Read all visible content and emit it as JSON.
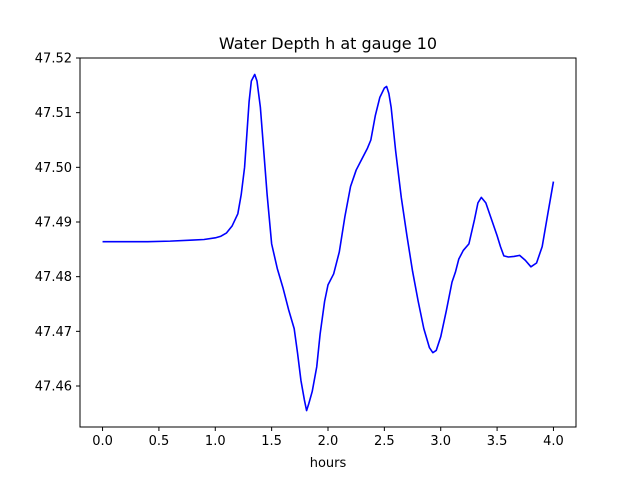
{
  "chart_data": {
    "type": "line",
    "title": "Water Depth h at gauge 10",
    "xlabel": "hours",
    "ylabel": "",
    "xlim": [
      -0.2,
      4.2
    ],
    "ylim": [
      47.4525,
      47.52
    ],
    "grid": false,
    "x_ticks": [
      0.0,
      0.5,
      1.0,
      1.5,
      2.0,
      2.5,
      3.0,
      3.5,
      4.0
    ],
    "x_tick_labels": [
      "0.0",
      "0.5",
      "1.0",
      "1.5",
      "2.0",
      "2.5",
      "3.0",
      "3.5",
      "4.0"
    ],
    "y_ticks": [
      47.46,
      47.47,
      47.48,
      47.49,
      47.5,
      47.51,
      47.52
    ],
    "y_tick_labels": [
      "47.46",
      "47.47",
      "47.48",
      "47.49",
      "47.50",
      "47.51",
      "47.52"
    ],
    "series": [
      {
        "color": "#0000ff",
        "x": [
          0.0,
          0.2,
          0.4,
          0.6,
          0.8,
          0.9,
          1.0,
          1.05,
          1.1,
          1.15,
          1.2,
          1.23,
          1.26,
          1.28,
          1.3,
          1.32,
          1.35,
          1.37,
          1.4,
          1.43,
          1.46,
          1.5,
          1.55,
          1.6,
          1.65,
          1.7,
          1.73,
          1.76,
          1.79,
          1.81,
          1.83,
          1.86,
          1.9,
          1.93,
          1.97,
          2.0,
          2.05,
          2.1,
          2.15,
          2.2,
          2.25,
          2.3,
          2.35,
          2.38,
          2.42,
          2.46,
          2.5,
          2.52,
          2.54,
          2.56,
          2.6,
          2.65,
          2.7,
          2.75,
          2.8,
          2.85,
          2.9,
          2.93,
          2.96,
          3.0,
          3.05,
          3.1,
          3.13,
          3.16,
          3.2,
          3.25,
          3.3,
          3.33,
          3.36,
          3.4,
          3.45,
          3.5,
          3.53,
          3.56,
          3.6,
          3.65,
          3.7,
          3.75,
          3.8,
          3.85,
          3.9,
          3.95,
          4.0
        ],
        "y": [
          47.4864,
          47.4864,
          47.4864,
          47.4865,
          47.4867,
          47.4868,
          47.4871,
          47.4874,
          47.488,
          47.4893,
          47.4915,
          47.495,
          47.5,
          47.506,
          47.512,
          47.5158,
          47.517,
          47.5158,
          47.511,
          47.503,
          47.495,
          47.486,
          47.4815,
          47.478,
          47.474,
          47.4705,
          47.466,
          47.461,
          47.4575,
          47.4555,
          47.4568,
          47.459,
          47.4635,
          47.4695,
          47.4755,
          47.4785,
          47.4805,
          47.4845,
          47.491,
          47.4965,
          47.4995,
          47.5015,
          47.5035,
          47.505,
          47.5095,
          47.5128,
          47.5145,
          47.5148,
          47.5135,
          47.511,
          47.503,
          47.4945,
          47.4875,
          47.481,
          47.4755,
          47.4705,
          47.467,
          47.4661,
          47.4665,
          47.469,
          47.4738,
          47.479,
          47.4808,
          47.4832,
          47.4848,
          47.486,
          47.4905,
          47.4935,
          47.4945,
          47.4935,
          47.4905,
          47.4875,
          47.4855,
          47.4838,
          47.4836,
          47.4837,
          47.4839,
          47.483,
          47.4818,
          47.4825,
          47.4855,
          47.4915,
          47.4974
        ]
      }
    ]
  }
}
